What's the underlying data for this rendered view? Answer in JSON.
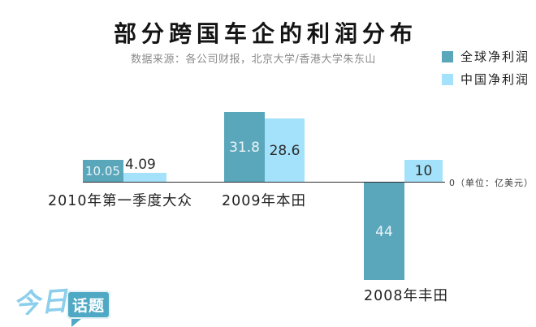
{
  "title": "部分跨国车企的利润分布",
  "subtitle": "数据来源：各公司财报，北京大学/香港大学朱东山",
  "logo": {
    "script": "今日",
    "badge": "话题"
  },
  "chart_data": {
    "type": "bar",
    "title": "部分跨国车企的利润分布",
    "subtitle": "数据来源：各公司财报，北京大学/香港大学朱东山",
    "unit": "亿美元",
    "axis_zero_label": "0（单位：亿美元）",
    "categories": [
      "2010年第一季度大众",
      "2009年本田",
      "2008年丰田"
    ],
    "series": [
      {
        "name": "全球净利润",
        "color": "#5aa7bb",
        "values": [
          10.05,
          31.8,
          -44
        ],
        "labels": [
          "10.05",
          "31.8",
          "44"
        ]
      },
      {
        "name": "中国净利润",
        "color": "#a3e2fa",
        "values": [
          4.09,
          28.6,
          10
        ],
        "labels": [
          "4.09",
          "28.6",
          "10"
        ]
      }
    ],
    "baseline": 0,
    "ylim": [
      -44,
      31.8
    ],
    "grid": false,
    "legend_position": "top-right",
    "xlabel": "",
    "ylabel": ""
  }
}
